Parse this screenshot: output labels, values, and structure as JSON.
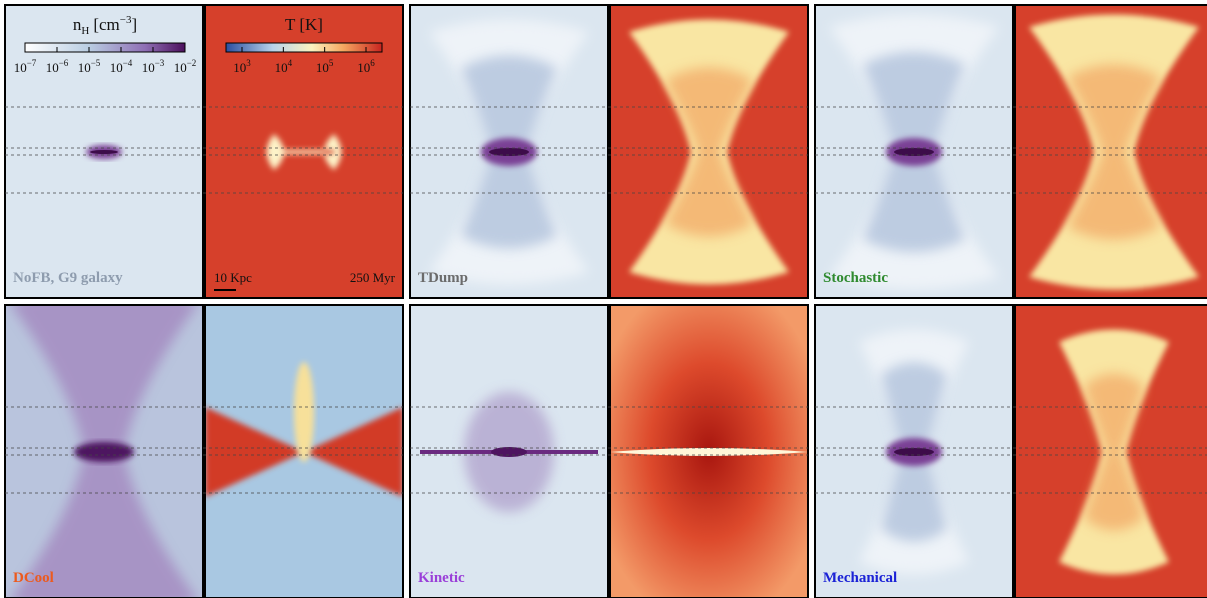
{
  "colorbars": [
    {
      "title": "n",
      "title_sub": "H",
      "unit": "[cm",
      "unit_sup": "−3",
      "unit_end": "]",
      "ticks": [
        {
          "base": "10",
          "exp": "−7"
        },
        {
          "base": "10",
          "exp": "−6"
        },
        {
          "base": "10",
          "exp": "−5"
        },
        {
          "base": "10",
          "exp": "−4"
        },
        {
          "base": "10",
          "exp": "−3"
        },
        {
          "base": "10",
          "exp": "−2"
        }
      ]
    },
    {
      "title": "T [K]",
      "ticks": [
        {
          "base": "10",
          "exp": "3"
        },
        {
          "base": "10",
          "exp": "4"
        },
        {
          "base": "10",
          "exp": "5"
        },
        {
          "base": "10",
          "exp": "6"
        }
      ]
    }
  ],
  "scale_bar": "10 Kpc",
  "time": "250 Myr",
  "panels": [
    {
      "label": "NoFB, G9 galaxy",
      "color": "#8e9cae"
    },
    {
      "label": "TDump",
      "color": "#6b6b6b"
    },
    {
      "label": "Stochastic",
      "color": "#2f8a2f"
    },
    {
      "label": "DCool",
      "color": "#ec5a1e"
    },
    {
      "label": "Kinetic",
      "color": "#9a3fd8"
    },
    {
      "label": "Mechanical",
      "color": "#1b22d6"
    }
  ]
}
